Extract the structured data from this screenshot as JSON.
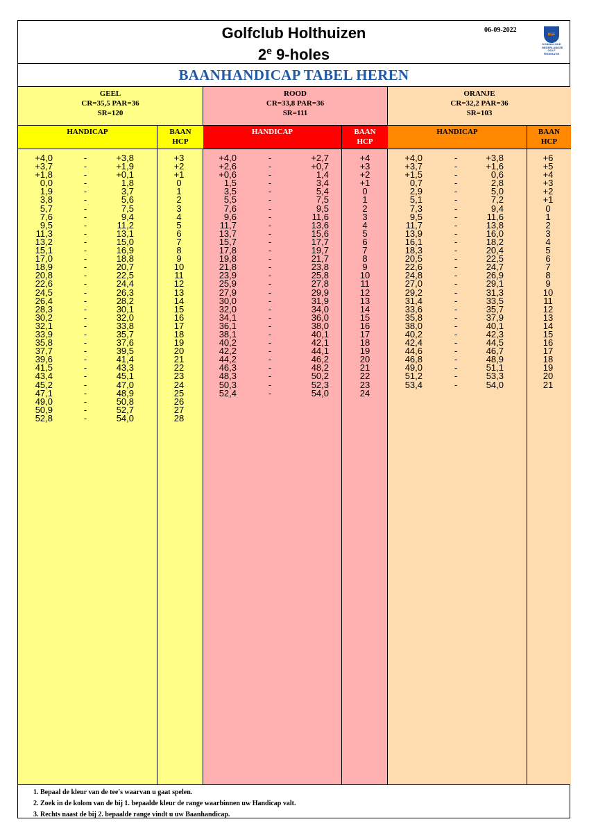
{
  "header": {
    "club": "Golfclub Holthuizen",
    "sub_prefix": "2",
    "sub_sup": "e",
    "sub_suffix": " 9-holes",
    "date": "06-09-2022",
    "logo_badge": "NGF",
    "logo_text": "KONINKLIJKE NEDERLANDSE GOLF FEDERATIE"
  },
  "title": "BAANHANDICAP TABEL HEREN",
  "colors": {
    "geel_bg": "#ffff88",
    "geel_hdr": "#ffff00",
    "rood_bg": "#ffb0b0",
    "rood_hdr": "#ff0000",
    "oranje_bg": "#ffdcb0",
    "oranje_hdr": "#ff8800",
    "title": "#1f5aa6"
  },
  "tees": [
    {
      "name": "GEEL",
      "cr_par": "CR=35,5 PAR=36",
      "sr": "SR=120",
      "rows": [
        [
          "+4,0",
          "+3,8",
          "+3"
        ],
        [
          "+3,7",
          "+1,9",
          "+2"
        ],
        [
          "+1,8",
          "+0,1",
          "+1"
        ],
        [
          "0,0",
          "1,8",
          "0"
        ],
        [
          "1,9",
          "3,7",
          "1"
        ],
        [
          "3,8",
          "5,6",
          "2"
        ],
        [
          "5,7",
          "7,5",
          "3"
        ],
        [
          "7,6",
          "9,4",
          "4"
        ],
        [
          "9,5",
          "11,2",
          "5"
        ],
        [
          "11,3",
          "13,1",
          "6"
        ],
        [
          "13,2",
          "15,0",
          "7"
        ],
        [
          "15,1",
          "16,9",
          "8"
        ],
        [
          "17,0",
          "18,8",
          "9"
        ],
        [
          "18,9",
          "20,7",
          "10"
        ],
        [
          "20,8",
          "22,5",
          "11"
        ],
        [
          "22,6",
          "24,4",
          "12"
        ],
        [
          "24,5",
          "26,3",
          "13"
        ],
        [
          "26,4",
          "28,2",
          "14"
        ],
        [
          "28,3",
          "30,1",
          "15"
        ],
        [
          "30,2",
          "32,0",
          "16"
        ],
        [
          "32,1",
          "33,8",
          "17"
        ],
        [
          "33,9",
          "35,7",
          "18"
        ],
        [
          "35,8",
          "37,6",
          "19"
        ],
        [
          "37,7",
          "39,5",
          "20"
        ],
        [
          "39,6",
          "41,4",
          "21"
        ],
        [
          "41,5",
          "43,3",
          "22"
        ],
        [
          "43,4",
          "45,1",
          "23"
        ],
        [
          "45,2",
          "47,0",
          "24"
        ],
        [
          "47,1",
          "48,9",
          "25"
        ],
        [
          "49,0",
          "50,8",
          "26"
        ],
        [
          "50,9",
          "52,7",
          "27"
        ],
        [
          "52,8",
          "54,0",
          "28"
        ]
      ]
    },
    {
      "name": "ROOD",
      "cr_par": "CR=33,8 PAR=36",
      "sr": "SR=111",
      "rows": [
        [
          "+4,0",
          "+2,7",
          "+4"
        ],
        [
          "+2,6",
          "+0,7",
          "+3"
        ],
        [
          "+0,6",
          "1,4",
          "+2"
        ],
        [
          "1,5",
          "3,4",
          "+1"
        ],
        [
          "3,5",
          "5,4",
          "0"
        ],
        [
          "5,5",
          "7,5",
          "1"
        ],
        [
          "7,6",
          "9,5",
          "2"
        ],
        [
          "9,6",
          "11,6",
          "3"
        ],
        [
          "11,7",
          "13,6",
          "4"
        ],
        [
          "13,7",
          "15,6",
          "5"
        ],
        [
          "15,7",
          "17,7",
          "6"
        ],
        [
          "17,8",
          "19,7",
          "7"
        ],
        [
          "19,8",
          "21,7",
          "8"
        ],
        [
          "21,8",
          "23,8",
          "9"
        ],
        [
          "23,9",
          "25,8",
          "10"
        ],
        [
          "25,9",
          "27,8",
          "11"
        ],
        [
          "27,9",
          "29,9",
          "12"
        ],
        [
          "30,0",
          "31,9",
          "13"
        ],
        [
          "32,0",
          "34,0",
          "14"
        ],
        [
          "34,1",
          "36,0",
          "15"
        ],
        [
          "36,1",
          "38,0",
          "16"
        ],
        [
          "38,1",
          "40,1",
          "17"
        ],
        [
          "40,2",
          "42,1",
          "18"
        ],
        [
          "42,2",
          "44,1",
          "19"
        ],
        [
          "44,2",
          "46,2",
          "20"
        ],
        [
          "46,3",
          "48,2",
          "21"
        ],
        [
          "48,3",
          "50,2",
          "22"
        ],
        [
          "50,3",
          "52,3",
          "23"
        ],
        [
          "52,4",
          "54,0",
          "24"
        ]
      ]
    },
    {
      "name": "ORANJE",
      "cr_par": "CR=32,2 PAR=36",
      "sr": "SR=103",
      "rows": [
        [
          "+4,0",
          "+3,8",
          "+6"
        ],
        [
          "+3,7",
          "+1,6",
          "+5"
        ],
        [
          "+1,5",
          "0,6",
          "+4"
        ],
        [
          "0,7",
          "2,8",
          "+3"
        ],
        [
          "2,9",
          "5,0",
          "+2"
        ],
        [
          "5,1",
          "7,2",
          "+1"
        ],
        [
          "7,3",
          "9,4",
          "0"
        ],
        [
          "9,5",
          "11,6",
          "1"
        ],
        [
          "11,7",
          "13,8",
          "2"
        ],
        [
          "13,9",
          "16,0",
          "3"
        ],
        [
          "16,1",
          "18,2",
          "4"
        ],
        [
          "18,3",
          "20,4",
          "5"
        ],
        [
          "20,5",
          "22,5",
          "6"
        ],
        [
          "22,6",
          "24,7",
          "7"
        ],
        [
          "24,8",
          "26,9",
          "8"
        ],
        [
          "27,0",
          "29,1",
          "9"
        ],
        [
          "29,2",
          "31,3",
          "10"
        ],
        [
          "31,4",
          "33,5",
          "11"
        ],
        [
          "33,6",
          "35,7",
          "12"
        ],
        [
          "35,8",
          "37,9",
          "13"
        ],
        [
          "38,0",
          "40,1",
          "14"
        ],
        [
          "40,2",
          "42,3",
          "15"
        ],
        [
          "42,4",
          "44,5",
          "16"
        ],
        [
          "44,6",
          "46,7",
          "17"
        ],
        [
          "46,8",
          "48,9",
          "18"
        ],
        [
          "49,0",
          "51,1",
          "19"
        ],
        [
          "51,2",
          "53,3",
          "20"
        ],
        [
          "53,4",
          "54,0",
          "21"
        ]
      ]
    }
  ],
  "labels": {
    "handicap": "HANDICAP",
    "baan": "BAAN",
    "hcp": "HCP",
    "dash": "-"
  },
  "footer": [
    "1. Bepaal de kleur van de tee's waarvan u gaat spelen.",
    "2. Zoek in de kolom van de bij 1. bepaalde kleur de range waarbinnen uw Handicap valt.",
    "3. Rechts naast de bij 2. bepaalde range vindt u uw Baanhandicap."
  ]
}
